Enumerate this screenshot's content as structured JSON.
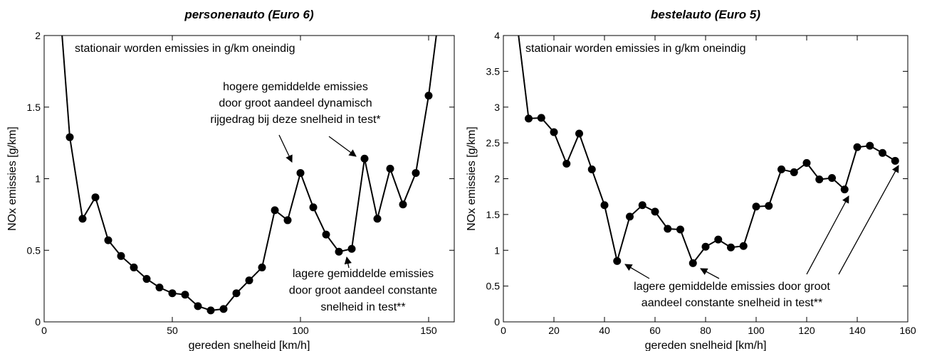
{
  "chart_data": [
    {
      "type": "line",
      "title": "personenauto (Euro 6)",
      "xlabel": "gereden snelheid [km/h]",
      "ylabel": "NOx emissies [g/km]",
      "color": "#000000",
      "x": [
        7,
        10,
        15,
        20,
        25,
        30,
        35,
        40,
        45,
        50,
        55,
        60,
        65,
        70,
        75,
        80,
        85,
        90,
        95,
        100,
        105,
        110,
        115,
        120,
        125,
        130,
        135,
        140,
        145,
        150,
        153
      ],
      "values": [
        2,
        1.29,
        0.72,
        0.87,
        0.57,
        0.46,
        0.38,
        0.3,
        0.24,
        0.2,
        0.19,
        0.11,
        0.08,
        0.09,
        0.2,
        0.29,
        0.38,
        0.78,
        0.71,
        1.04,
        0.8,
        0.61,
        0.49,
        0.51,
        1.14,
        0.72,
        1.07,
        0.82,
        1.04,
        1.58,
        2
      ],
      "xlim": [
        0,
        160
      ],
      "xticks": [
        0,
        50,
        100,
        150
      ],
      "ylim": [
        0,
        2
      ],
      "yticks": [
        0,
        0.5,
        1,
        1.5,
        2
      ],
      "annotations": [
        {
          "lines": [
            "stationair worden emissies in g/km oneindig"
          ]
        },
        {
          "lines": [
            "hogere gemiddelde emissies",
            "door groot aandeel dynamisch",
            "rijgedrag bij deze snelheid in test*"
          ]
        },
        {
          "lines": [
            "lagere gemiddelde emissies",
            "door groot aandeel constante",
            "snelheid in test**"
          ]
        }
      ]
    },
    {
      "type": "line",
      "title": "bestelauto (Euro 5)",
      "xlabel": "gereden snelheid [km/h]",
      "ylabel": "NOx emissies [g/km]",
      "color": "#000000",
      "x": [
        6,
        10,
        15,
        20,
        25,
        30,
        35,
        40,
        45,
        50,
        55,
        60,
        65,
        70,
        75,
        80,
        85,
        90,
        95,
        100,
        105,
        110,
        115,
        120,
        125,
        130,
        135,
        140,
        145,
        150,
        155
      ],
      "values": [
        4,
        2.84,
        2.85,
        2.65,
        2.21,
        2.63,
        2.13,
        1.63,
        0.85,
        1.47,
        1.63,
        1.54,
        1.3,
        1.29,
        0.82,
        1.05,
        1.15,
        1.04,
        1.06,
        1.61,
        1.62,
        2.13,
        2.09,
        2.22,
        1.99,
        2.01,
        1.85,
        2.44,
        2.46,
        2.36,
        2.25
      ],
      "xlim": [
        0,
        160
      ],
      "xticks": [
        0,
        20,
        40,
        60,
        80,
        100,
        120,
        140,
        160
      ],
      "ylim": [
        0,
        4
      ],
      "yticks": [
        0,
        0.5,
        1,
        1.5,
        2,
        2.5,
        3,
        3.5,
        4
      ],
      "annotations": [
        {
          "lines": [
            "stationair worden emissies in g/km oneindig"
          ]
        },
        {
          "lines": [
            "lagere gemiddelde emissies door groot",
            "aandeel constante snelheid in test**"
          ]
        }
      ]
    }
  ]
}
